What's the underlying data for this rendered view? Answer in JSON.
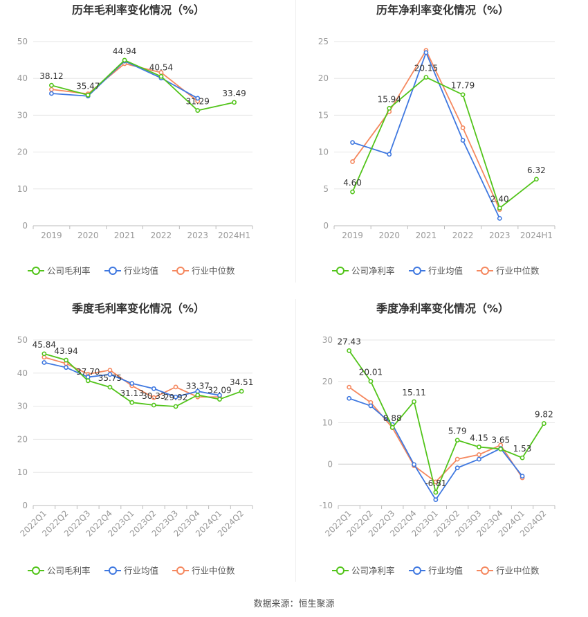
{
  "colors": {
    "company": "#52c41a",
    "avg": "#3f78e0",
    "median": "#f5885f",
    "grid": "#e6e6e6",
    "axis": "#999999",
    "title": "#333333",
    "label": "#333333"
  },
  "source": "数据来源：恒生聚源",
  "chart_data": [
    {
      "type": "line",
      "title": "历年毛利率变化情况（%）",
      "categories": [
        "2019",
        "2020",
        "2021",
        "2022",
        "2023",
        "2024H1"
      ],
      "ylim": [
        0,
        50
      ],
      "yticks": [
        0,
        10,
        20,
        30,
        40,
        50
      ],
      "grid": true,
      "legend_position": "bottom",
      "series": [
        {
          "name": "公司毛利率",
          "values": [
            38.12,
            35.47,
            44.94,
            40.54,
            31.29,
            33.49
          ],
          "labels": [
            "38.12",
            "35.47",
            "44.94",
            "40.54",
            "31.29",
            "33.49"
          ]
        },
        {
          "name": "行业均值",
          "values": [
            35.9,
            35.2,
            44.7,
            40.1,
            34.6,
            null
          ]
        },
        {
          "name": "行业中位数",
          "values": [
            37.0,
            35.8,
            44.0,
            41.6,
            33.8,
            null
          ]
        }
      ]
    },
    {
      "type": "line",
      "title": "历年净利率变化情况（%）",
      "categories": [
        "2019",
        "2020",
        "2021",
        "2022",
        "2023",
        "2024H1"
      ],
      "ylim": [
        0,
        25
      ],
      "yticks": [
        0,
        5,
        10,
        15,
        20,
        25
      ],
      "grid": true,
      "legend_position": "bottom",
      "series": [
        {
          "name": "公司净利率",
          "values": [
            4.6,
            15.94,
            20.15,
            17.79,
            2.4,
            6.32
          ],
          "labels": [
            "4.60",
            "15.94",
            "20.15",
            "17.79",
            "2.40",
            "6.32"
          ]
        },
        {
          "name": "行业均值",
          "values": [
            11.3,
            9.7,
            23.5,
            11.6,
            1.0,
            null
          ]
        },
        {
          "name": "行业中位数",
          "values": [
            8.7,
            15.5,
            23.8,
            13.3,
            2.2,
            null
          ]
        }
      ]
    },
    {
      "type": "line",
      "title": "季度毛利率变化情况（%）",
      "categories": [
        "2022Q1",
        "2022Q2",
        "2022Q3",
        "2022Q4",
        "2023Q1",
        "2023Q2",
        "2023Q3",
        "2023Q4",
        "2024Q1",
        "2024Q2"
      ],
      "ylim": [
        0,
        50
      ],
      "yticks": [
        0,
        10,
        20,
        30,
        40,
        50
      ],
      "grid": true,
      "legend_position": "bottom",
      "series": [
        {
          "name": "公司毛利率",
          "values": [
            45.84,
            43.94,
            37.7,
            35.75,
            31.13,
            30.33,
            29.92,
            33.37,
            32.09,
            34.51
          ],
          "labels": [
            "45.84",
            "43.94",
            "37.70",
            "35.75",
            "31.13",
            "30.33",
            "29.92",
            "33.37",
            "32.09",
            "34.51"
          ]
        },
        {
          "name": "行业均值",
          "values": [
            43.2,
            41.7,
            38.8,
            39.6,
            36.9,
            35.3,
            32.8,
            34.5,
            33.3,
            null
          ]
        },
        {
          "name": "行业中位数",
          "values": [
            44.8,
            42.9,
            39.7,
            40.9,
            36.2,
            32.6,
            35.8,
            32.8,
            32.8,
            null
          ]
        }
      ]
    },
    {
      "type": "line",
      "title": "季度净利率变化情况（%）",
      "categories": [
        "2022Q1",
        "2022Q2",
        "2022Q3",
        "2022Q4",
        "2023Q1",
        "2023Q2",
        "2023Q3",
        "2023Q4",
        "2024Q1",
        "2024Q2"
      ],
      "ylim": [
        -10,
        30
      ],
      "yticks": [
        -10,
        0,
        10,
        20,
        30
      ],
      "grid": true,
      "legend_position": "bottom",
      "series": [
        {
          "name": "公司净利率",
          "values": [
            27.43,
            20.01,
            8.88,
            15.11,
            -6.81,
            5.79,
            4.15,
            3.65,
            1.53,
            9.82
          ],
          "labels": [
            "27.43",
            "20.01",
            "8.88",
            "15.11",
            "-6.81",
            "5.79",
            "4.15",
            "3.65",
            "1.53",
            "9.82"
          ]
        },
        {
          "name": "行业均值",
          "values": [
            15.9,
            14.1,
            9.6,
            -0.1,
            -8.6,
            -0.9,
            1.2,
            3.8,
            -2.9,
            null
          ]
        },
        {
          "name": "行业中位数",
          "values": [
            18.6,
            14.9,
            8.8,
            -0.4,
            -4.3,
            1.2,
            2.3,
            4.6,
            -3.3,
            null
          ]
        }
      ]
    }
  ]
}
